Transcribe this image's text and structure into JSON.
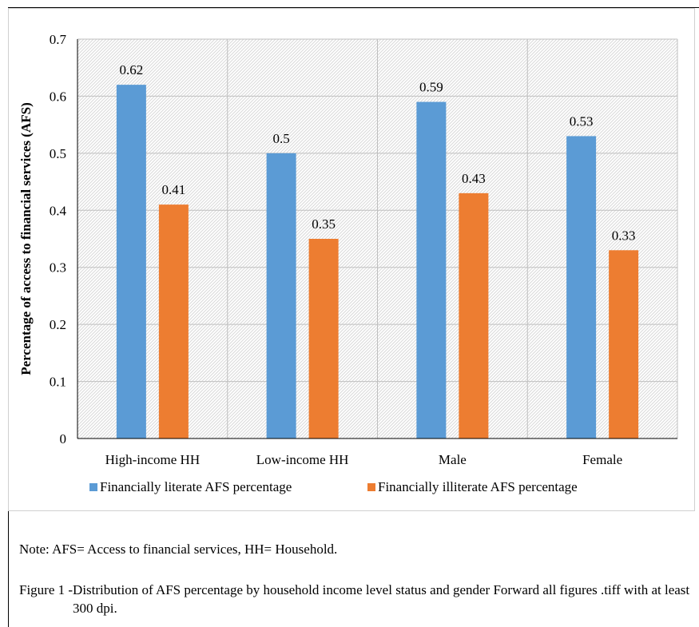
{
  "chart_data": {
    "type": "bar",
    "categories": [
      "High-income HH",
      "Low-income HH",
      "Male",
      "Female"
    ],
    "series": [
      {
        "name": "Financially literate AFS percentage",
        "values": [
          0.62,
          0.5,
          0.59,
          0.53
        ],
        "color": "#5b9bd5"
      },
      {
        "name": "Financially illiterate AFS percentage",
        "values": [
          0.41,
          0.35,
          0.43,
          0.33
        ],
        "color": "#ed7d31"
      }
    ],
    "data_labels": [
      [
        "0.62",
        "0.5",
        "0.59",
        "0.53"
      ],
      [
        "0.41",
        "0.35",
        "0.43",
        "0.33"
      ]
    ],
    "ylabel": "Percentage of access to financial services (AFS)",
    "ylim": [
      0,
      0.7
    ],
    "yticks": [
      "0",
      "0.1",
      "0.2",
      "0.3",
      "0.4",
      "0.5",
      "0.6",
      "0.7"
    ],
    "grid": true,
    "legend_position": "bottom"
  },
  "note": "Note: AFS= Access to financial services, HH= Household.",
  "caption": {
    "label": "Figure 1 - ",
    "text": "Distribution of AFS percentage by household income level status and gender Forward all figures .tiff with at least 300 dpi."
  }
}
